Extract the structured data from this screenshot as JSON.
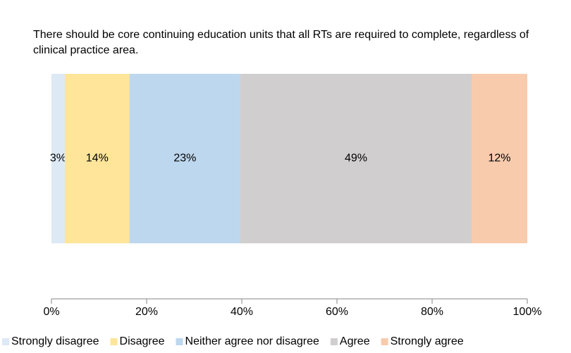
{
  "chart_data": {
    "type": "stacked_bar_horizontal",
    "categories": [
      "There should be core continuing education units that all RTs are required to complete, regardless of clinical practice area."
    ],
    "series": [
      {
        "name": "Strongly disagree",
        "color": "#dde9f5",
        "values": [
          2.8
        ],
        "value_labels": [
          "3%"
        ]
      },
      {
        "name": "Disagree",
        "color": "#fee599",
        "values": [
          13.6
        ],
        "value_labels": [
          "14%"
        ]
      },
      {
        "name": "Neither agree nor disagree",
        "color": "#bdd7ee",
        "values": [
          23.3
        ],
        "value_labels": [
          "23%"
        ]
      },
      {
        "name": "Agree",
        "color": "#d0cece",
        "values": [
          48.6
        ],
        "value_labels": [
          "49%"
        ]
      },
      {
        "name": "Strongly agree",
        "color": "#f8cbad",
        "values": [
          11.7
        ],
        "value_labels": [
          "12%"
        ]
      }
    ],
    "xlim": [
      0,
      100
    ],
    "xticks": [
      {
        "value": 0,
        "label": "0%"
      },
      {
        "value": 20,
        "label": "20%"
      },
      {
        "value": 40,
        "label": "40%"
      },
      {
        "value": 60,
        "label": "60%"
      },
      {
        "value": 80,
        "label": "80%"
      },
      {
        "value": 100,
        "label": "100%"
      }
    ],
    "legend": "bottom"
  }
}
